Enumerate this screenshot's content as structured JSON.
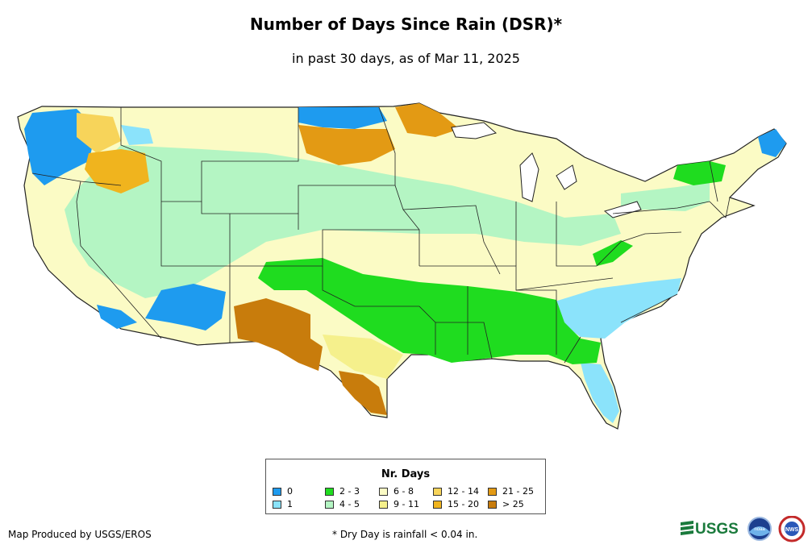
{
  "title": "Number of Days Since Rain (DSR)*",
  "subtitle": "in past 30 days, as of Mar 11, 2025",
  "legend": {
    "title": "Nr. Days",
    "items": [
      {
        "label": "0",
        "color": "#1e9bef"
      },
      {
        "label": "1",
        "color": "#8be3fb"
      },
      {
        "label": "2 - 3",
        "color": "#1fdc1f"
      },
      {
        "label": "4 - 5",
        "color": "#b4f5c3"
      },
      {
        "label": "6 - 8",
        "color": "#fbfbc5"
      },
      {
        "label": "9 - 11",
        "color": "#f5f08c"
      },
      {
        "label": "12 - 14",
        "color": "#f7d45a"
      },
      {
        "label": "15 - 20",
        "color": "#f0b41e"
      },
      {
        "label": "21 - 25",
        "color": "#e39a14"
      },
      {
        "label": "> 25",
        "color": "#c87c0c"
      }
    ]
  },
  "credit": "Map Produced by USGS/EROS",
  "footnote": "* Dry Day is rainfall < 0.04 in.",
  "logos": {
    "usgs": "USGS",
    "noaa": "noaa",
    "nws": "NWS"
  }
}
